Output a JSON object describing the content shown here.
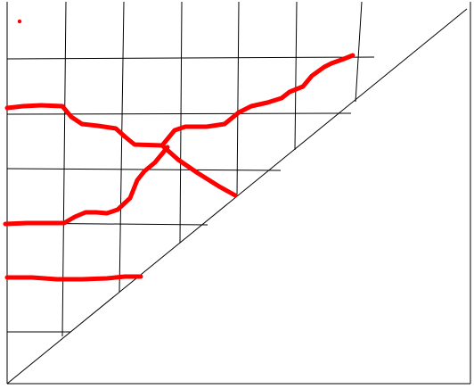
{
  "colors": {
    "background": "#ffffff",
    "grid_line": "#000000",
    "path_stroke": "#ff0000",
    "marker_dot": "#ff0000"
  },
  "diagram": {
    "kind": "triangular grid with hand-drawn paths",
    "grid_rows": 7,
    "grid_columns": 8,
    "path_count": 4,
    "marker_count": 1
  }
}
